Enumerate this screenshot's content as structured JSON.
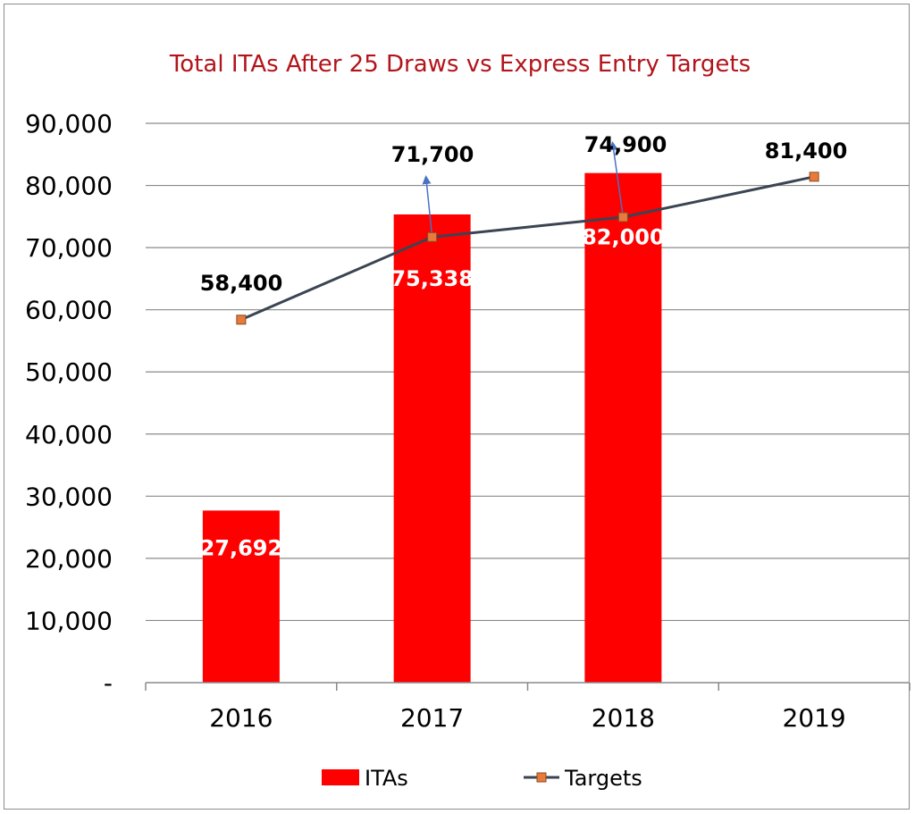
{
  "chart_data": {
    "type": "bar",
    "title": "Total ITAs After 25 Draws vs Express Entry Targets",
    "categories": [
      "2016",
      "2017",
      "2018",
      "2019"
    ],
    "y_tick_labels": [
      "-",
      "10,000",
      "20,000",
      "30,000",
      "40,000",
      "50,000",
      "60,000",
      "70,000",
      "80,000",
      "90,000"
    ],
    "ylim": [
      0,
      90000
    ],
    "grid": true,
    "legend_position": "bottom",
    "series": [
      {
        "name": "ITAs",
        "type": "bar",
        "color": "#ff0000",
        "values": [
          27692,
          75338,
          82000,
          null
        ],
        "labels": [
          "27,692",
          "75,338",
          "82,000",
          ""
        ]
      },
      {
        "name": "Targets",
        "type": "line",
        "color": "#3b4452",
        "marker_color": "#e87b3c",
        "values": [
          58400,
          71700,
          74900,
          81400
        ],
        "labels": [
          "58,400",
          "71,700",
          "74,900",
          "81,400"
        ]
      }
    ]
  }
}
